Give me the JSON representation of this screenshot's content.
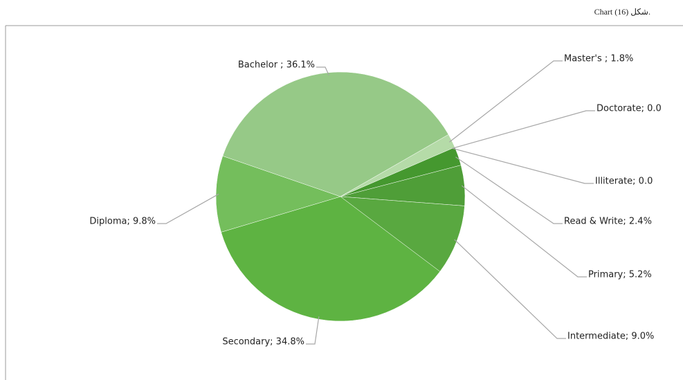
{
  "chart_data": {
    "type": "pie",
    "title": "Chart (16) شكل.",
    "values": [
      36.1,
      1.8,
      0.0,
      0.0,
      2.4,
      5.2,
      9.0,
      34.8,
      9.8
    ],
    "value_labels": [
      "Bachelor ; 36.1%",
      "Master's ; 1.8%",
      "Doctorate; 0.0",
      "Illiterate; 0.0",
      "Read & Write; 2.4%",
      "Primary; 5.2%",
      "Intermediate; 9.0%",
      "Secondary; 34.8%",
      "Diploma; 9.8%"
    ],
    "colors": [
      "#96c987",
      "#b5dba8",
      "#a9d59a",
      "#3f8f2e",
      "#45982f",
      "#4f9e38",
      "#59a840",
      "#5eb342",
      "#74be5c"
    ]
  }
}
